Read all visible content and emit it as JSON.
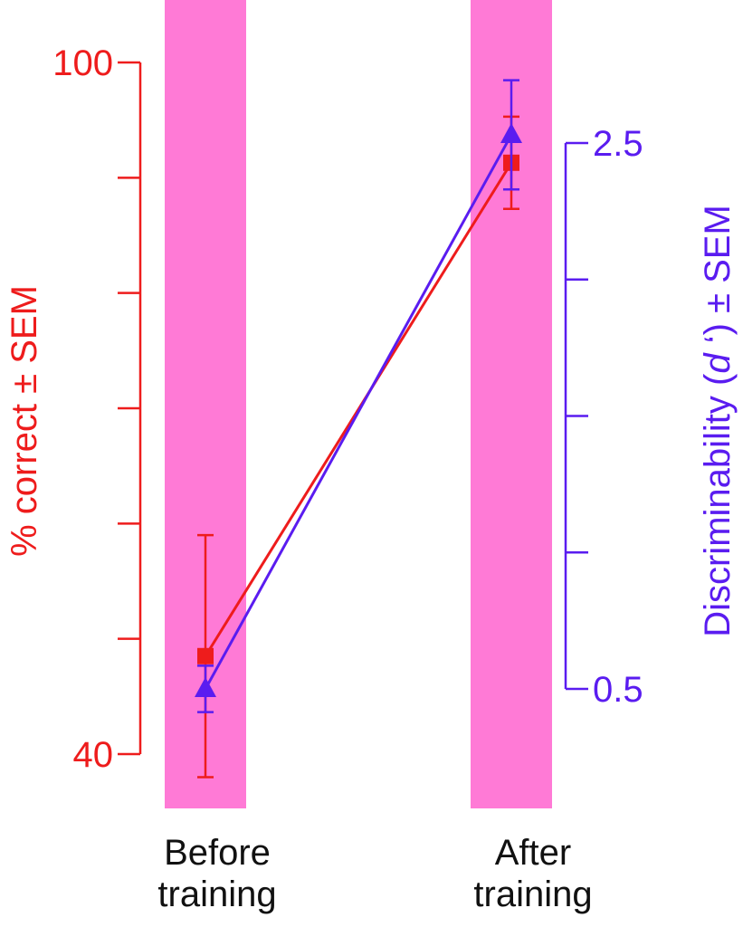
{
  "colors": {
    "band": "#ff7ad6",
    "left_axis": "#ee1c1c",
    "right_axis": "#5a1cf0",
    "text": "#111111"
  },
  "chart_data": {
    "type": "line",
    "categories": [
      "Before training",
      "After training"
    ],
    "category_lines": [
      [
        "Before",
        "training"
      ],
      [
        "After",
        "training"
      ]
    ],
    "highlight_bands": [
      "Before training",
      "After training"
    ],
    "left_axis": {
      "label": "% correct ± SEM",
      "range": [
        40,
        100
      ],
      "ticks": [
        40,
        50,
        60,
        70,
        80,
        90,
        100
      ],
      "tick_labels": [
        "40",
        "",
        "",
        "",
        "",
        "",
        "100"
      ],
      "color": "#ee1c1c"
    },
    "right_axis": {
      "label_parts": [
        "Discriminability (",
        "d",
        " ‘) ± SEM"
      ],
      "range": [
        0.5,
        2.5
      ],
      "ticks": [
        0.5,
        1.0,
        1.5,
        2.0,
        2.5
      ],
      "tick_labels": [
        "0.5",
        "",
        "",
        "",
        "2.5"
      ],
      "color": "#5a1cf0"
    },
    "series": [
      {
        "axis": "left",
        "marker": "square",
        "color": "#ee1c1c",
        "values": [
          48.5,
          91.3
        ],
        "error": [
          10.5,
          4.0
        ]
      },
      {
        "axis": "right",
        "marker": "triangle",
        "color": "#5a1cf0",
        "values": [
          0.5,
          2.53
        ],
        "error": [
          0.085,
          0.2
        ]
      }
    ]
  }
}
